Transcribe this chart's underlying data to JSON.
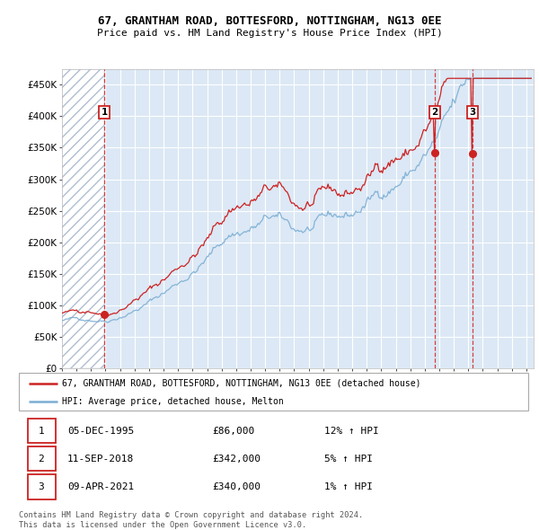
{
  "title_line1": "67, GRANTHAM ROAD, BOTTESFORD, NOTTINGHAM, NG13 0EE",
  "title_line2": "Price paid vs. HM Land Registry's House Price Index (HPI)",
  "yticks": [
    0,
    50000,
    100000,
    150000,
    200000,
    250000,
    300000,
    350000,
    400000,
    450000
  ],
  "ytick_labels": [
    "£0",
    "£50K",
    "£100K",
    "£150K",
    "£200K",
    "£250K",
    "£300K",
    "£350K",
    "£400K",
    "£450K"
  ],
  "ylim": [
    0,
    475000
  ],
  "xlim_start": 1993.0,
  "xlim_end": 2025.5,
  "hpi_color": "#7aaed4",
  "price_color": "#cc2222",
  "background_color": "#ffffff",
  "plot_bg_color": "#dce8f5",
  "hatch_color": "#b0bed0",
  "grid_color": "#ffffff",
  "sale_dates": [
    1995.92,
    2018.69,
    2021.27
  ],
  "sale_prices": [
    86000,
    342000,
    340000
  ],
  "sale_labels": [
    "1",
    "2",
    "3"
  ],
  "legend_label_price": "67, GRANTHAM ROAD, BOTTESFORD, NOTTINGHAM, NG13 0EE (detached house)",
  "legend_label_hpi": "HPI: Average price, detached house, Melton",
  "table_data": [
    [
      "1",
      "05-DEC-1995",
      "£86,000",
      "12% ↑ HPI"
    ],
    [
      "2",
      "11-SEP-2018",
      "£342,000",
      "5% ↑ HPI"
    ],
    [
      "3",
      "09-APR-2021",
      "£340,000",
      "1% ↑ HPI"
    ]
  ],
  "footer": "Contains HM Land Registry data © Crown copyright and database right 2024.\nThis data is licensed under the Open Government Licence v3.0."
}
